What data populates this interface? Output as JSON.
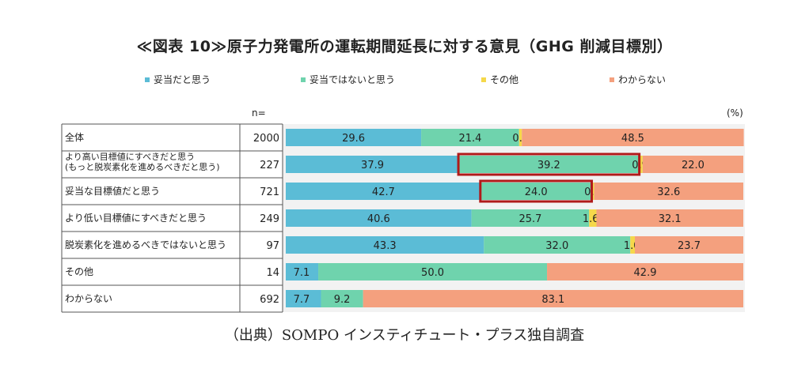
{
  "title": "≪図表 10≫原子力発電所の運転期間延長に対する意見（GHG 削減目標別）",
  "n_header": "n=",
  "unit": "(%)",
  "source": "（出典）SOMPO インスティチュート・プラス独自調査",
  "colors": {
    "series": [
      "#5bbcd6",
      "#6fd3ad",
      "#f5d84a",
      "#f4a07e"
    ],
    "highlight": "#b01a1a",
    "plot_bg": "#f2f2f2"
  },
  "chart_data": {
    "type": "bar",
    "orientation": "horizontal",
    "stacked": true,
    "xlim": [
      0,
      100
    ],
    "legend_placement": "top",
    "categories": [
      "全体",
      "より高い目標値にすべきだと思う\n(もっと脱炭素化を進めるべきだと思う)",
      "妥当な目標値だと思う",
      "より低い目標値にすべきだと思う",
      "脱炭素化を進めるべきではないと思う",
      "その他",
      "わからない"
    ],
    "n": [
      "2000",
      "227",
      "721",
      "249",
      "97",
      "14",
      "692"
    ],
    "series": [
      {
        "name": "妥当だと思う",
        "values": [
          29.6,
          37.9,
          42.7,
          40.6,
          43.3,
          7.1,
          7.7
        ]
      },
      {
        "name": "妥当ではないと思う",
        "values": [
          21.4,
          39.2,
          24.0,
          25.7,
          32.0,
          50.0,
          9.2
        ]
      },
      {
        "name": "その他",
        "values": [
          0.6,
          0.9,
          0.7,
          1.6,
          1.0,
          0.0,
          0.0
        ]
      },
      {
        "name": "わからない",
        "values": [
          48.5,
          22.0,
          32.6,
          32.1,
          23.7,
          42.9,
          83.1
        ]
      }
    ],
    "highlighted": [
      {
        "row": 1,
        "series": 1
      },
      {
        "row": 2,
        "series": 1
      }
    ]
  }
}
